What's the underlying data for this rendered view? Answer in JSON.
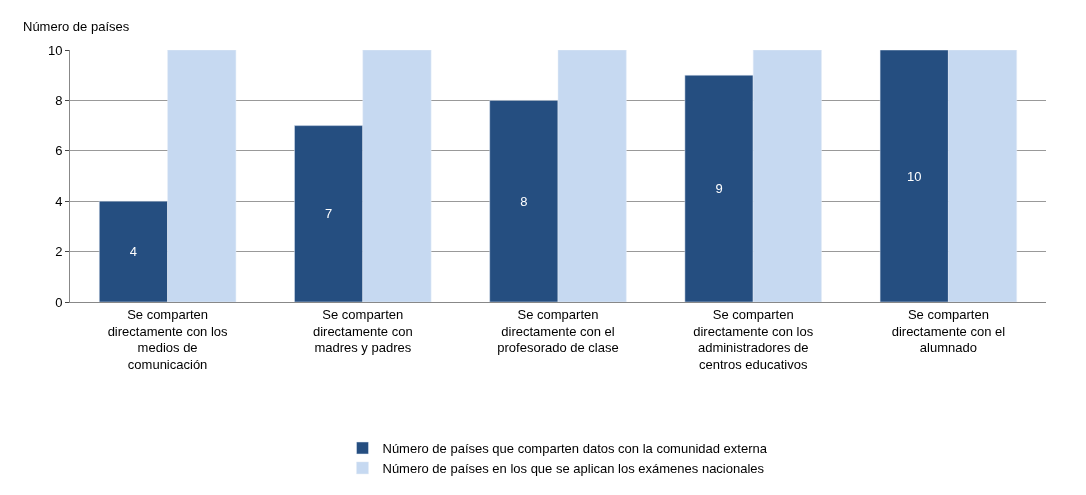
{
  "chart_data": {
    "type": "bar",
    "ylabel": "Número de países",
    "categories": [
      "Se comparten directamente con los medios de comunicación",
      "Se comparten directamente con madres y padres",
      "Se comparten directamente con el profesorado de clase",
      "Se comparten directamente con los administradores de centros educativos",
      "Se comparten directamente con el alumnado"
    ],
    "series": [
      {
        "name": "Número de países que comparten datos con la comunidad externa",
        "color": "#254e80",
        "values": [
          4,
          7,
          8,
          9,
          10
        ],
        "value_labels": [
          "4",
          "7",
          "8",
          "9",
          "10"
        ]
      },
      {
        "name": "Número de países en los que se aplican los exámenes nacionales",
        "color": "#c6d9f1",
        "values": [
          10,
          10,
          10,
          10,
          10
        ]
      }
    ],
    "ylim": [
      0,
      10
    ],
    "yticks": [
      0,
      2,
      4,
      6,
      8,
      10
    ],
    "grid": "y",
    "legend": "bottom"
  }
}
